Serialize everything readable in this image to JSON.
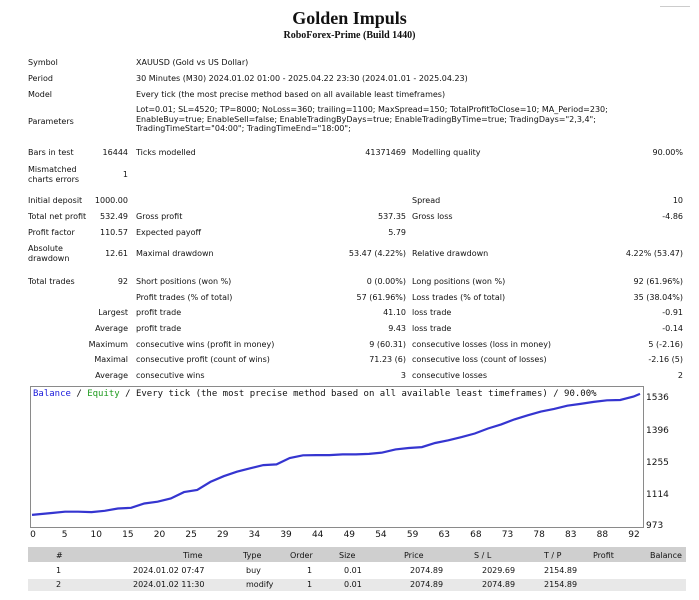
{
  "header": {
    "title": "Golden Impuls",
    "subtitle": "RoboForex-Prime (Build 1440)"
  },
  "info": {
    "symbol_label": "Symbol",
    "symbol_value": "XAUUSD (Gold vs US Dollar)",
    "period_label": "Period",
    "period_value": "30 Minutes (M30) 2024.01.02 01:00 - 2025.04.22 23:30 (2024.01.01 - 2025.04.23)",
    "model_label": "Model",
    "model_value": "Every tick (the most precise method based on all available least timeframes)",
    "parameters_label": "Parameters",
    "parameters_value": "Lot=0.01; SL=4520; TP=8000; NoLoss=360; trailing=1100; MaxSpread=150; TotalProfitToClose=10; MA_Period=230; EnableBuy=true; EnableSell=false; EnableTradingByDays=true; EnableTradingByTime=true; TradingDays=\"2,3,4\"; TradingTimeStart=\"04:00\"; TradingTimeEnd=\"18:00\";"
  },
  "stats": {
    "bars_label": "Bars in test",
    "bars_value": "16444",
    "ticks_label": "Ticks modelled",
    "ticks_value": "41371469",
    "quality_label": "Modelling quality",
    "quality_value": "90.00%",
    "mismatched_label1": "Mismatched",
    "mismatched_label2": "charts errors",
    "mismatched_value": "1",
    "deposit_label": "Initial deposit",
    "deposit_value": "1000.00",
    "spread_label": "Spread",
    "spread_value": "10",
    "net_label": "Total net profit",
    "net_value": "532.49",
    "gross_profit_label": "Gross profit",
    "gross_profit_value": "537.35",
    "gross_loss_label": "Gross loss",
    "gross_loss_value": "-4.86",
    "pf_label": "Profit factor",
    "pf_value": "110.57",
    "ep_label": "Expected payoff",
    "ep_value": "5.79",
    "abs_dd_label1": "Absolute",
    "abs_dd_label2": "drawdown",
    "abs_dd_value": "12.61",
    "max_dd_label": "Maximal drawdown",
    "max_dd_value": "53.47 (4.22%)",
    "rel_dd_label": "Relative drawdown",
    "rel_dd_value": "4.22% (53.47)",
    "trades_label": "Total trades",
    "trades_value": "92",
    "short_label": "Short positions (won %)",
    "short_value": "0 (0.00%)",
    "long_label": "Long positions (won %)",
    "long_value": "92 (61.96%)",
    "profit_trades_label": "Profit trades (% of total)",
    "profit_trades_value": "57 (61.96%)",
    "loss_trades_label": "Loss trades (% of total)",
    "loss_trades_value": "35 (38.04%)",
    "largest_label": "Largest",
    "largest_pt_label": "profit trade",
    "largest_pt_value": "41.10",
    "largest_lt_label": "loss trade",
    "largest_lt_value": "-0.91",
    "average_label": "Average",
    "average_pt_label": "profit trade",
    "average_pt_value": "9.43",
    "average_lt_label": "loss trade",
    "average_lt_value": "-0.14",
    "maximum_label": "Maximum",
    "max_cw_label": "consecutive wins (profit in money)",
    "max_cw_value": "9 (60.31)",
    "max_cl_label": "consecutive losses (loss in money)",
    "max_cl_value": "5 (-2.16)",
    "maximal_label": "Maximal",
    "mxl_cp_label": "consecutive profit (count of wins)",
    "mxl_cp_value": "71.23 (6)",
    "mxl_cl_label": "consecutive loss (count of losses)",
    "mxl_cl_value": "-2.16 (5)",
    "avg_label": "Average",
    "avg_cw_label": "consecutive wins",
    "avg_cw_value": "3",
    "avg_cl_label": "consecutive losses",
    "avg_cl_value": "2"
  },
  "chart_header": {
    "balance": "Balance",
    "sep": " / ",
    "equity": "Equity",
    "rest": " / Every tick (the most precise method based on all available least timeframes) / 90.00%",
    "balance_color": "#1a1adb",
    "equity_color": "#1f9b1f"
  },
  "chart_data": {
    "type": "line",
    "x_ticks": [
      "0",
      "5",
      "10",
      "15",
      "20",
      "25",
      "29",
      "34",
      "39",
      "44",
      "49",
      "54",
      "59",
      "63",
      "68",
      "73",
      "78",
      "83",
      "88",
      "92"
    ],
    "y_ticks": [
      "1536",
      "1396",
      "1255",
      "1114",
      "973"
    ],
    "ylim": [
      973,
      1536
    ],
    "xlim": [
      0,
      92
    ],
    "series": [
      {
        "name": "Balance",
        "color": "#3535d0",
        "x": [
          0,
          3,
          5,
          7,
          9,
          11,
          13,
          15,
          17,
          19,
          21,
          23,
          25,
          27,
          29,
          31,
          33,
          35,
          37,
          39,
          41,
          43,
          45,
          47,
          49,
          51,
          53,
          55,
          57,
          59,
          61,
          63,
          65,
          67,
          69,
          71,
          73,
          75,
          77,
          79,
          81,
          83,
          85,
          87,
          89,
          91,
          92
        ],
        "y": [
          1000,
          1008,
          1014,
          1014,
          1012,
          1018,
          1028,
          1031,
          1050,
          1058,
          1072,
          1100,
          1110,
          1145,
          1170,
          1190,
          1205,
          1219,
          1222,
          1250,
          1262,
          1263,
          1263,
          1266,
          1266,
          1268,
          1274,
          1288,
          1294,
          1298,
          1316,
          1328,
          1342,
          1358,
          1380,
          1398,
          1420,
          1438,
          1454,
          1466,
          1480,
          1488,
          1497,
          1504,
          1505,
          1520,
          1532
        ]
      }
    ]
  },
  "table": {
    "headers": [
      "#",
      "Time",
      "Type",
      "Order",
      "Size",
      "Price",
      "S / L",
      "T / P",
      "Profit",
      "Balance"
    ],
    "rows": [
      [
        "1",
        "2024.01.02 07:47",
        "buy",
        "1",
        "0.01",
        "2074.89",
        "2029.69",
        "2154.89",
        "",
        ""
      ],
      [
        "2",
        "2024.01.02 11:30",
        "modify",
        "1",
        "0.01",
        "2074.89",
        "2074.89",
        "2154.89",
        "",
        ""
      ]
    ]
  }
}
